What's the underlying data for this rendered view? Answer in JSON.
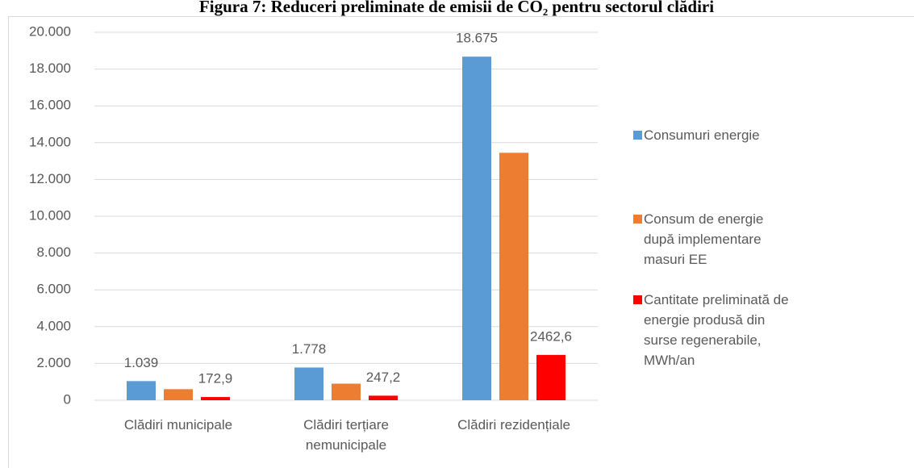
{
  "chart_data": {
    "type": "bar",
    "title": "Figura 7: Reduceri preliminate de emisii de CO₂ pentru sectorul clădiri",
    "categories": [
      "Clădiri municipale",
      "Clădiri terțiare nemunicipale",
      "Clădiri rezidențiale"
    ],
    "series": [
      {
        "name": "Consumuri energie",
        "color": "#5b9bd5",
        "values": [
          1039,
          1778,
          18675
        ],
        "value_labels": [
          "1.039",
          "1.778",
          "18.675"
        ]
      },
      {
        "name": "Consum de energie după implementare masuri EE",
        "color": "#ed7d31",
        "values": [
          600,
          900,
          13450
        ]
      },
      {
        "name": "Cantitate preliminată de energie produsă din surse regenerabile, MWh/an",
        "color": "#ff0000",
        "values": [
          172.9,
          247.2,
          2462.6
        ],
        "value_labels": [
          "172,9",
          "247,2",
          "2462,6"
        ]
      }
    ],
    "ylim": [
      0,
      20000
    ],
    "yticks": [
      0,
      {
        "value": 2000,
        "label": "2.000"
      },
      {
        "value": 4000,
        "label": "4.000"
      },
      {
        "value": 6000,
        "label": "6.000"
      },
      {
        "value": 8000,
        "label": "8.000"
      },
      {
        "value": 10000,
        "label": "10.000"
      },
      {
        "value": 12000,
        "label": "12.000"
      },
      {
        "value": 14000,
        "label": "14.000"
      },
      {
        "value": 16000,
        "label": "16.000"
      },
      {
        "value": 18000,
        "label": "18.000"
      },
      {
        "value": 20000,
        "label": "20.000"
      }
    ],
    "grid": true,
    "legend": "right"
  }
}
